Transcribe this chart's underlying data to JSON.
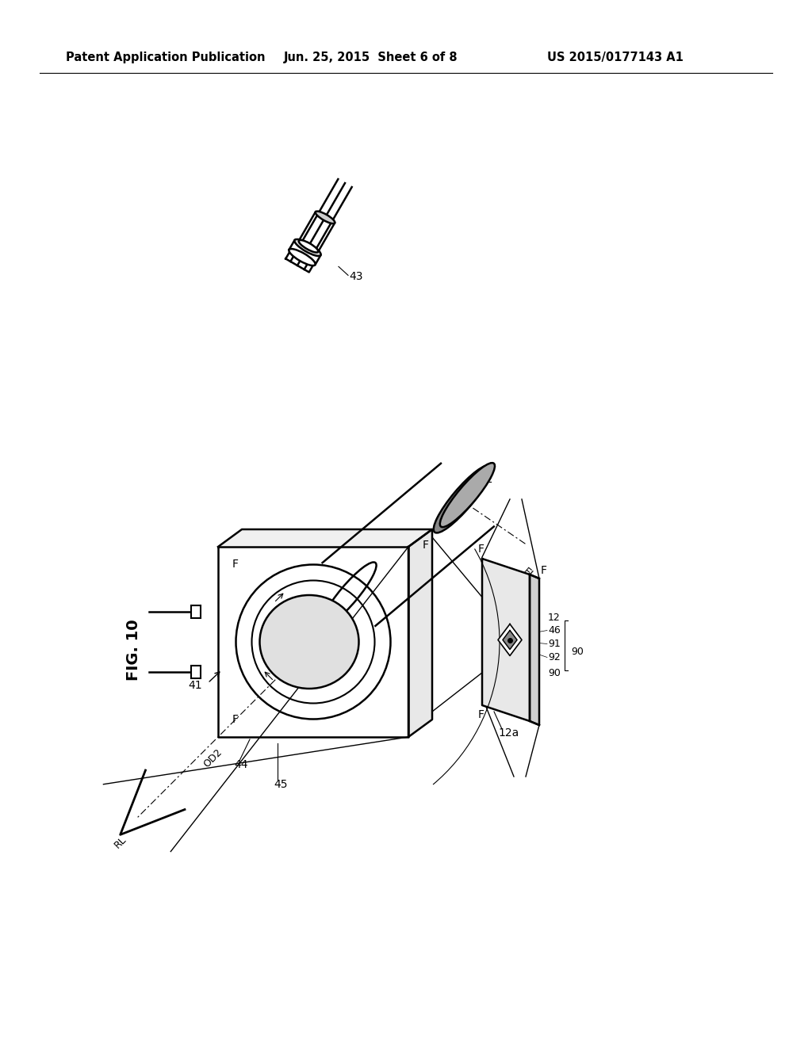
{
  "title_left": "Patent Application Publication",
  "title_mid": "Jun. 25, 2015  Sheet 6 of 8",
  "title_right": "US 2015/0177143 A1",
  "fig_label": "FIG. 10",
  "background_color": "#ffffff",
  "line_color": "#000000",
  "header_fontsize": 10.5,
  "label_fontsize": 10
}
